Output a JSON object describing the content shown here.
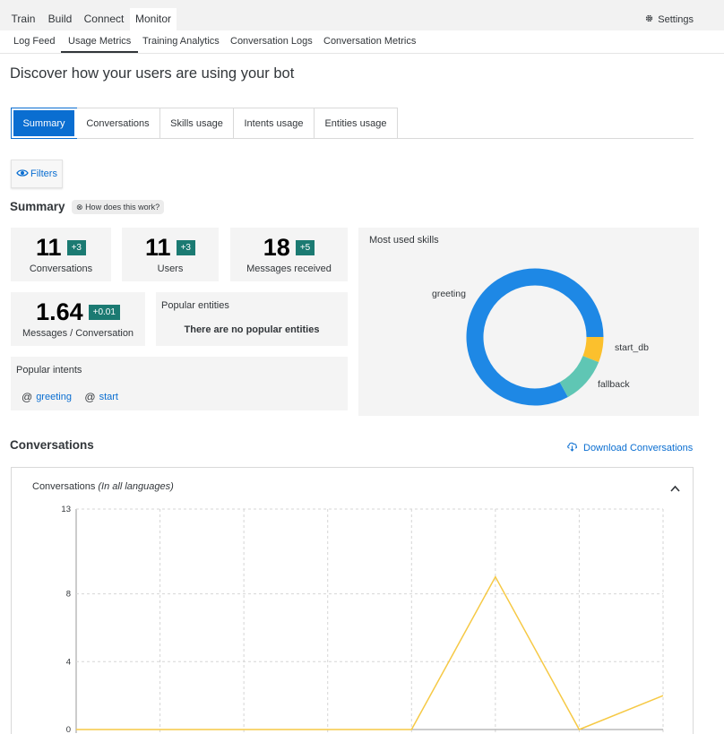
{
  "top_tabs": [
    "Train",
    "Build",
    "Connect",
    "Monitor"
  ],
  "settings_label": "Settings",
  "sub_tabs": [
    "Log Feed",
    "Usage Metrics",
    "Training Analytics",
    "Conversation Logs",
    "Conversation Metrics"
  ],
  "headline": "Discover how your users are using your bot",
  "segments": [
    "Summary",
    "Conversations",
    "Skills usage",
    "Intents usage",
    "Entities usage"
  ],
  "filters_label": "Filters",
  "summary": {
    "title": "Summary",
    "how_label": "How does this work?",
    "kpis": [
      {
        "value": "11",
        "delta": "+3",
        "label": "Conversations"
      },
      {
        "value": "11",
        "delta": "+3",
        "label": "Users"
      },
      {
        "value": "18",
        "delta": "+5",
        "label": "Messages received"
      },
      {
        "value": "1.64",
        "delta": "+0.01",
        "label": "Messages / Conversation"
      }
    ],
    "popular_entities_title": "Popular entities",
    "popular_entities_empty": "There are no popular entities",
    "popular_intents_title": "Popular intents",
    "popular_intents": [
      "greeting",
      "start"
    ]
  },
  "skills_chart": {
    "title": "Most used skills",
    "slices": [
      {
        "label": "greeting",
        "value": 0.83,
        "color": "#1e88e5"
      },
      {
        "label": "start_db",
        "value": 0.06,
        "color": "#fbc02d"
      },
      {
        "label": "fallback",
        "value": 0.11,
        "color": "#5fc6b4"
      }
    ]
  },
  "conversations": {
    "title": "Conversations",
    "download_label": "Download Conversations",
    "panel_title": "Conversations",
    "panel_subtitle": "(In all languages)"
  },
  "chart_data": {
    "type": "line",
    "title": "Conversations (In all languages)",
    "yticks": [
      0,
      4,
      8,
      13
    ],
    "ylim": [
      0,
      13
    ],
    "grid": true,
    "series": [
      {
        "color": "#f6c945",
        "values": [
          0,
          0,
          0,
          0,
          0,
          9,
          0,
          2
        ]
      }
    ]
  },
  "colors": {
    "accent": "#0a6ed1",
    "delta_badge": "#1b7a72"
  }
}
